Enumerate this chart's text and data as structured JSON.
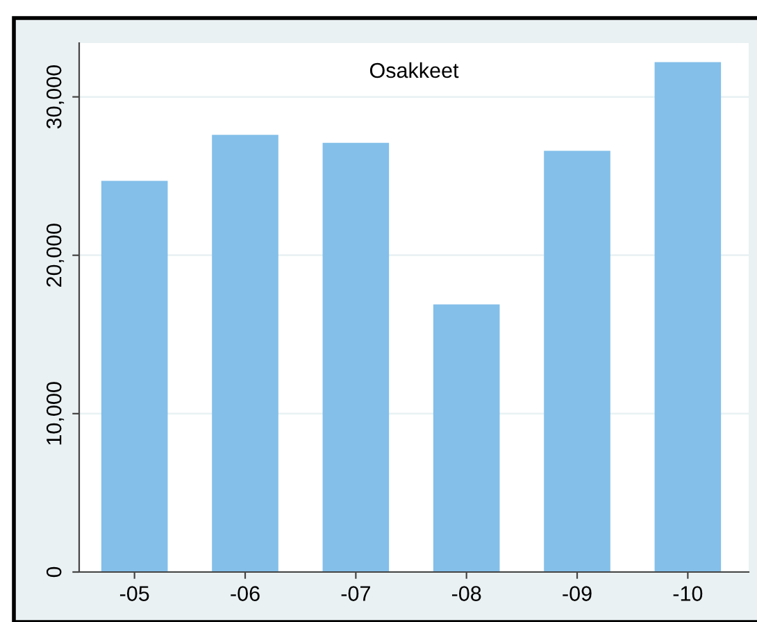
{
  "chart_data": {
    "type": "bar",
    "title": "Osakkeet",
    "categories": [
      "-05",
      "-06",
      "-07",
      "-08",
      "-09",
      "-10"
    ],
    "values": [
      24700,
      27600,
      27100,
      16900,
      26600,
      32200
    ],
    "color": "#83bfe9",
    "ylim": [
      0,
      33400
    ],
    "yticks": [
      0,
      {
        "value": 10000,
        "label": "10,000"
      },
      {
        "value": 20000,
        "label": "20,000"
      },
      {
        "value": 30000,
        "label": "30,000"
      }
    ],
    "grid": "y"
  }
}
